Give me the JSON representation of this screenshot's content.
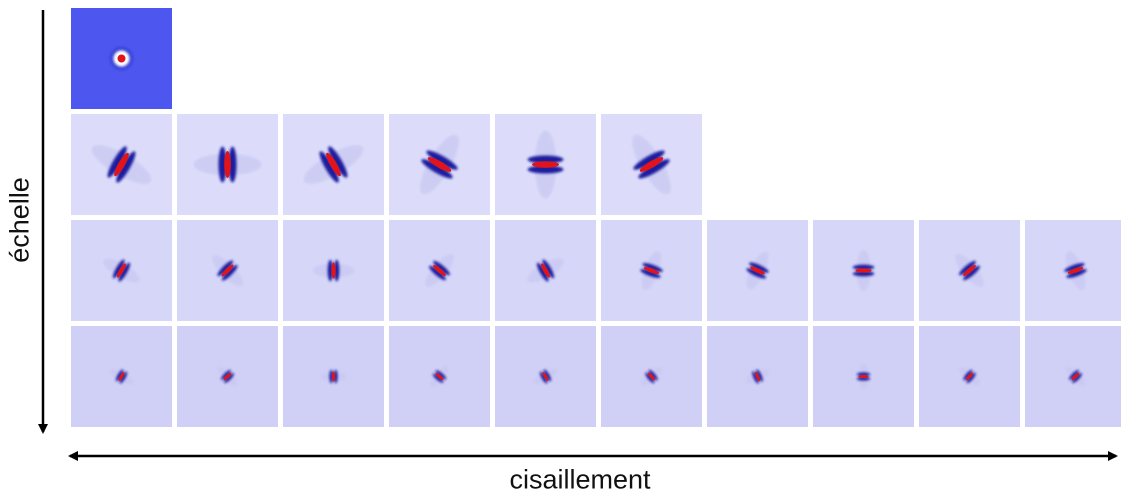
{
  "axes": {
    "y_label": "échelle",
    "x_label": "cisaillement"
  },
  "colors": {
    "background_tile": "#d4d4f7",
    "lowpass_tile": "#4d57f0",
    "positive": "#e0141a",
    "negative": "#1a1f9e",
    "axis": "#000000"
  },
  "rows": [
    {
      "scale": 0,
      "tiles": [
        {
          "kind": "lowpass"
        }
      ]
    },
    {
      "scale": 1,
      "tiles": [
        {
          "angle": 30
        },
        {
          "angle": 0
        },
        {
          "angle": -30
        },
        {
          "angle": -60
        },
        {
          "angle": 90
        },
        {
          "angle": 60
        }
      ]
    },
    {
      "scale": 2,
      "tiles": [
        {
          "angle": 30
        },
        {
          "angle": 45
        },
        {
          "angle": 0
        },
        {
          "angle": -50
        },
        {
          "angle": -30
        },
        {
          "angle": -70
        },
        {
          "angle": -65
        },
        {
          "angle": 90
        },
        {
          "angle": 50
        },
        {
          "angle": 70
        }
      ]
    },
    {
      "scale": 3,
      "tiles": [
        {
          "angle": 30
        },
        {
          "angle": 45
        },
        {
          "angle": 0
        },
        {
          "angle": -50
        },
        {
          "angle": -30
        },
        {
          "angle": -40
        },
        {
          "angle": -25
        },
        {
          "angle": 90
        },
        {
          "angle": 40
        },
        {
          "angle": 45
        }
      ]
    }
  ]
}
